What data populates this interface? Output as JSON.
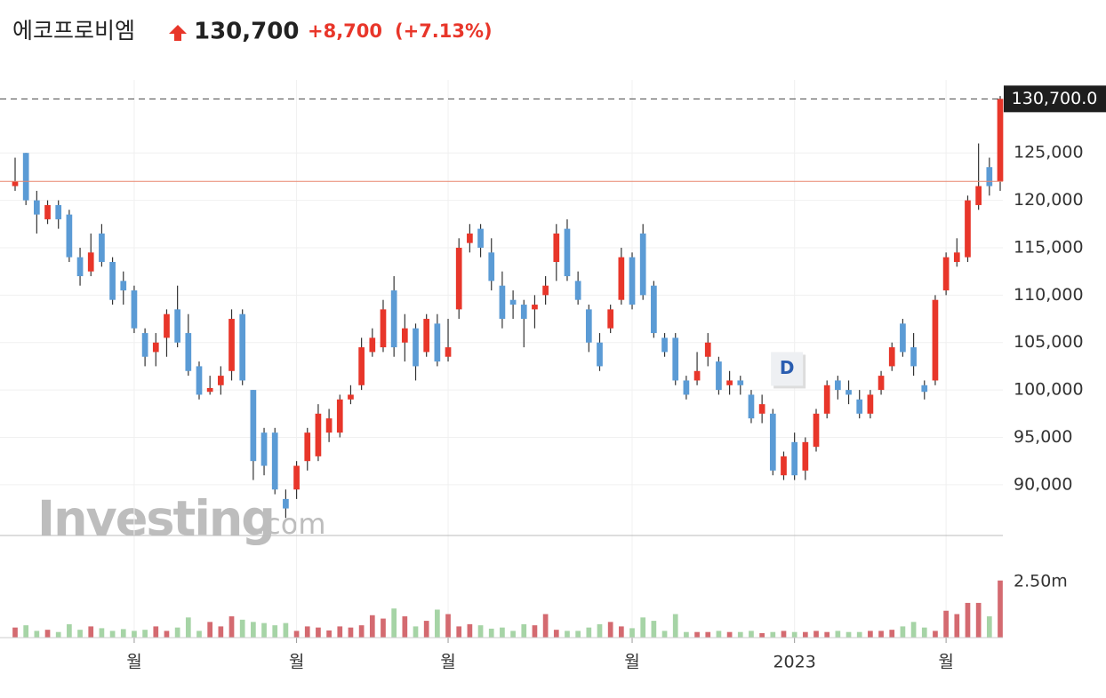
{
  "chart_data": {
    "type": "candlestick",
    "title": "에코프로비엠",
    "price": "130,700",
    "change": "+8,700",
    "change_pct": "(+7.13%)",
    "last_price": {
      "value": 130700,
      "label": "130,700.0"
    },
    "previous_close": 122000,
    "ylim": [
      84650,
      132700
    ],
    "yticks": [
      {
        "value": 90000,
        "label": "90,000"
      },
      {
        "value": 95000,
        "label": "95,000"
      },
      {
        "value": 100000,
        "label": "100,000"
      },
      {
        "value": 105000,
        "label": "105,000"
      },
      {
        "value": 110000,
        "label": "110,000"
      },
      {
        "value": 115000,
        "label": "115,000"
      },
      {
        "value": 120000,
        "label": "120,000"
      },
      {
        "value": 125000,
        "label": "125,000"
      }
    ],
    "volume_ylim": [
      0,
      4560000
    ],
    "volume_yticks": [
      {
        "value": 2500000,
        "label": "2.50m"
      }
    ],
    "xticks": [
      {
        "index": 11,
        "label": "월"
      },
      {
        "index": 26,
        "label": "월"
      },
      {
        "index": 40,
        "label": "월"
      },
      {
        "index": 57,
        "label": "월"
      },
      {
        "index": 72,
        "label": "2023"
      },
      {
        "index": 86,
        "label": "월"
      }
    ],
    "grid": true,
    "up_color": "#e8362a",
    "down_color": "#5b9bd5",
    "volume_up_color": "#d46a70",
    "volume_down_color": "#a6d4a6",
    "marker": {
      "index": 69,
      "label": "D"
    },
    "watermark": [
      "Investing",
      ".com"
    ],
    "ohlc": [
      [
        121500,
        124500,
        121000,
        122000
      ],
      [
        125000,
        125000,
        119500,
        120000
      ],
      [
        120000,
        121000,
        116500,
        118500
      ],
      [
        118000,
        120000,
        117500,
        119500
      ],
      [
        119500,
        120000,
        117000,
        118000
      ],
      [
        118500,
        119000,
        113500,
        114000
      ],
      [
        114000,
        115000,
        111000,
        112000
      ],
      [
        112500,
        116500,
        112000,
        114500
      ],
      [
        116500,
        117500,
        113000,
        113500
      ],
      [
        113500,
        114000,
        109000,
        109500
      ],
      [
        111500,
        112500,
        109000,
        110500
      ],
      [
        110500,
        111000,
        106000,
        106500
      ],
      [
        106000,
        106500,
        102500,
        103500
      ],
      [
        104000,
        106000,
        102500,
        105000
      ],
      [
        105500,
        108500,
        103500,
        108000
      ],
      [
        108500,
        111000,
        104500,
        105000
      ],
      [
        106000,
        108000,
        101500,
        102000
      ],
      [
        102500,
        103000,
        99000,
        99500
      ],
      [
        99800,
        101500,
        99500,
        100200
      ],
      [
        100500,
        102500,
        99500,
        101500
      ],
      [
        102000,
        108500,
        101000,
        107500
      ],
      [
        108000,
        108500,
        100500,
        101000
      ],
      [
        100000,
        100000,
        90500,
        92500
      ],
      [
        95500,
        96000,
        91000,
        92000
      ],
      [
        95500,
        96000,
        89000,
        89500
      ],
      [
        88500,
        89500,
        86500,
        87500
      ],
      [
        89500,
        92500,
        88500,
        92000
      ],
      [
        92500,
        96000,
        91500,
        95500
      ],
      [
        93000,
        98500,
        92500,
        97500
      ],
      [
        95500,
        98000,
        94500,
        97000
      ],
      [
        95500,
        99500,
        95000,
        99000
      ],
      [
        99000,
        100500,
        98500,
        99500
      ],
      [
        100500,
        105500,
        100000,
        104500
      ],
      [
        104000,
        106500,
        103500,
        105500
      ],
      [
        104500,
        109500,
        104000,
        108500
      ],
      [
        110500,
        112000,
        103500,
        104500
      ],
      [
        105000,
        108000,
        103000,
        106500
      ],
      [
        106500,
        107000,
        101000,
        102500
      ],
      [
        104000,
        108000,
        103500,
        107500
      ],
      [
        107000,
        108000,
        102500,
        103000
      ],
      [
        103500,
        107500,
        103000,
        104500
      ],
      [
        108500,
        116000,
        107500,
        115000
      ],
      [
        115500,
        117500,
        114500,
        116500
      ],
      [
        117000,
        117500,
        114000,
        115000
      ],
      [
        114500,
        116000,
        110500,
        111500
      ],
      [
        111000,
        112500,
        106500,
        107500
      ],
      [
        109500,
        110500,
        107500,
        109000
      ],
      [
        109000,
        109500,
        104500,
        107500
      ],
      [
        108500,
        110000,
        106500,
        109000
      ],
      [
        110000,
        112000,
        109000,
        111000
      ],
      [
        113500,
        117500,
        111500,
        116500
      ],
      [
        117000,
        118000,
        111500,
        112000
      ],
      [
        111500,
        112500,
        109000,
        109500
      ],
      [
        108500,
        109000,
        104000,
        105000
      ],
      [
        105000,
        106000,
        102000,
        102500
      ],
      [
        106500,
        109000,
        106000,
        108500
      ],
      [
        109500,
        115000,
        109000,
        114000
      ],
      [
        114000,
        114500,
        108500,
        109000
      ],
      [
        116500,
        117500,
        109500,
        110000
      ],
      [
        111000,
        111500,
        105500,
        106000
      ],
      [
        105500,
        106000,
        103500,
        104000
      ],
      [
        105500,
        106000,
        100500,
        101000
      ],
      [
        101000,
        101500,
        99000,
        99500
      ],
      [
        101000,
        104000,
        100500,
        102000
      ],
      [
        103500,
        106000,
        102500,
        105000
      ],
      [
        103000,
        103500,
        99500,
        100000
      ],
      [
        100500,
        102000,
        99500,
        101000
      ],
      [
        101000,
        101500,
        99500,
        100500
      ],
      [
        99500,
        100000,
        96500,
        97000
      ],
      [
        97500,
        99500,
        96500,
        98500
      ],
      [
        97500,
        98000,
        91000,
        91500
      ],
      [
        91000,
        93500,
        90500,
        93000
      ],
      [
        94500,
        95500,
        90500,
        91000
      ],
      [
        91500,
        95000,
        90500,
        94500
      ],
      [
        94000,
        98000,
        93500,
        97500
      ],
      [
        97500,
        101000,
        97000,
        100500
      ],
      [
        101000,
        101500,
        99000,
        100000
      ],
      [
        100000,
        101000,
        98500,
        99500
      ],
      [
        99000,
        100000,
        97000,
        97500
      ],
      [
        97500,
        100000,
        97000,
        99500
      ],
      [
        100000,
        102000,
        99500,
        101500
      ],
      [
        102500,
        105000,
        102000,
        104500
      ],
      [
        107000,
        107500,
        103500,
        104000
      ],
      [
        104500,
        106000,
        101500,
        102500
      ],
      [
        100500,
        101000,
        99000,
        99800
      ],
      [
        101000,
        110000,
        100500,
        109500
      ],
      [
        110500,
        114500,
        110000,
        114000
      ],
      [
        113500,
        116000,
        113000,
        114500
      ],
      [
        114000,
        120500,
        113500,
        120000
      ],
      [
        119500,
        126000,
        119000,
        121500
      ],
      [
        123500,
        124500,
        120500,
        121500
      ],
      [
        122000,
        131000,
        121000,
        130700
      ]
    ],
    "volume": [
      450000,
      550000,
      300000,
      350000,
      250000,
      600000,
      350000,
      500000,
      420000,
      300000,
      380000,
      300000,
      350000,
      500000,
      300000,
      450000,
      900000,
      300000,
      700000,
      500000,
      950000,
      800000,
      700000,
      650000,
      550000,
      650000,
      300000,
      500000,
      450000,
      320000,
      500000,
      450000,
      550000,
      1000000,
      850000,
      1300000,
      950000,
      500000,
      750000,
      1250000,
      1050000,
      500000,
      600000,
      550000,
      400000,
      450000,
      300000,
      600000,
      550000,
      1050000,
      350000,
      300000,
      300000,
      450000,
      600000,
      700000,
      500000,
      420000,
      900000,
      750000,
      300000,
      1050000,
      250000,
      250000,
      250000,
      300000,
      250000,
      250000,
      300000,
      200000,
      250000,
      300000,
      250000,
      250000,
      300000,
      250000,
      300000,
      250000,
      250000,
      300000,
      300000,
      350000,
      500000,
      700000,
      450000,
      300000,
      1200000,
      1050000,
      1550000,
      1550000,
      950000,
      2550000
    ]
  }
}
